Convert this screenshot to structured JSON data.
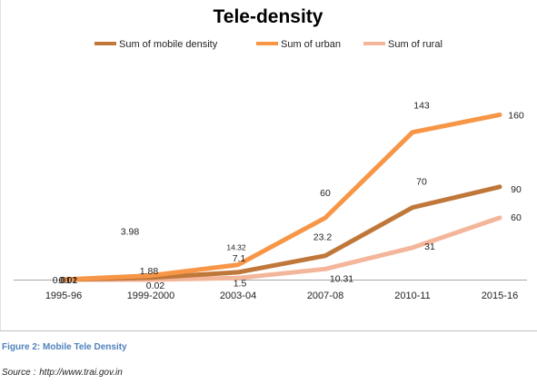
{
  "chart_data": {
    "type": "line",
    "title": "Tele-density",
    "categories": [
      "1995-96",
      "1999-2000",
      "2003-04",
      "2007-08",
      "2010-11",
      "2015-16"
    ],
    "series": [
      {
        "name": "Sum of mobile density",
        "color": "#c0773a",
        "values": [
          0.02,
          1.88,
          7.1,
          23.2,
          70,
          90
        ]
      },
      {
        "name": "Sum of urban",
        "color": "#f79646",
        "values": [
          0.01,
          3.98,
          14.32,
          60,
          143,
          160
        ]
      },
      {
        "name": "Sum of rural",
        "color": "#f4b69a",
        "values": [
          0.01,
          0.02,
          1.5,
          10.31,
          31,
          60
        ]
      }
    ],
    "data_labels": {
      "mobile": [
        "0.02",
        "1.88",
        "7.1",
        "23.2",
        "70",
        "90"
      ],
      "urban": [
        "0.01",
        "3.98",
        "14.32",
        "60",
        "143",
        "160"
      ],
      "rural": [
        "0.01",
        "0.02",
        "1.5",
        "10.31",
        "31",
        "60"
      ]
    },
    "ylim": [
      0,
      180
    ],
    "legend_position": "top",
    "grid": false
  },
  "caption": "Figure 2: Mobile Tele Density",
  "source": {
    "label": "Source :",
    "url": "http://www.trai.gov.in"
  }
}
